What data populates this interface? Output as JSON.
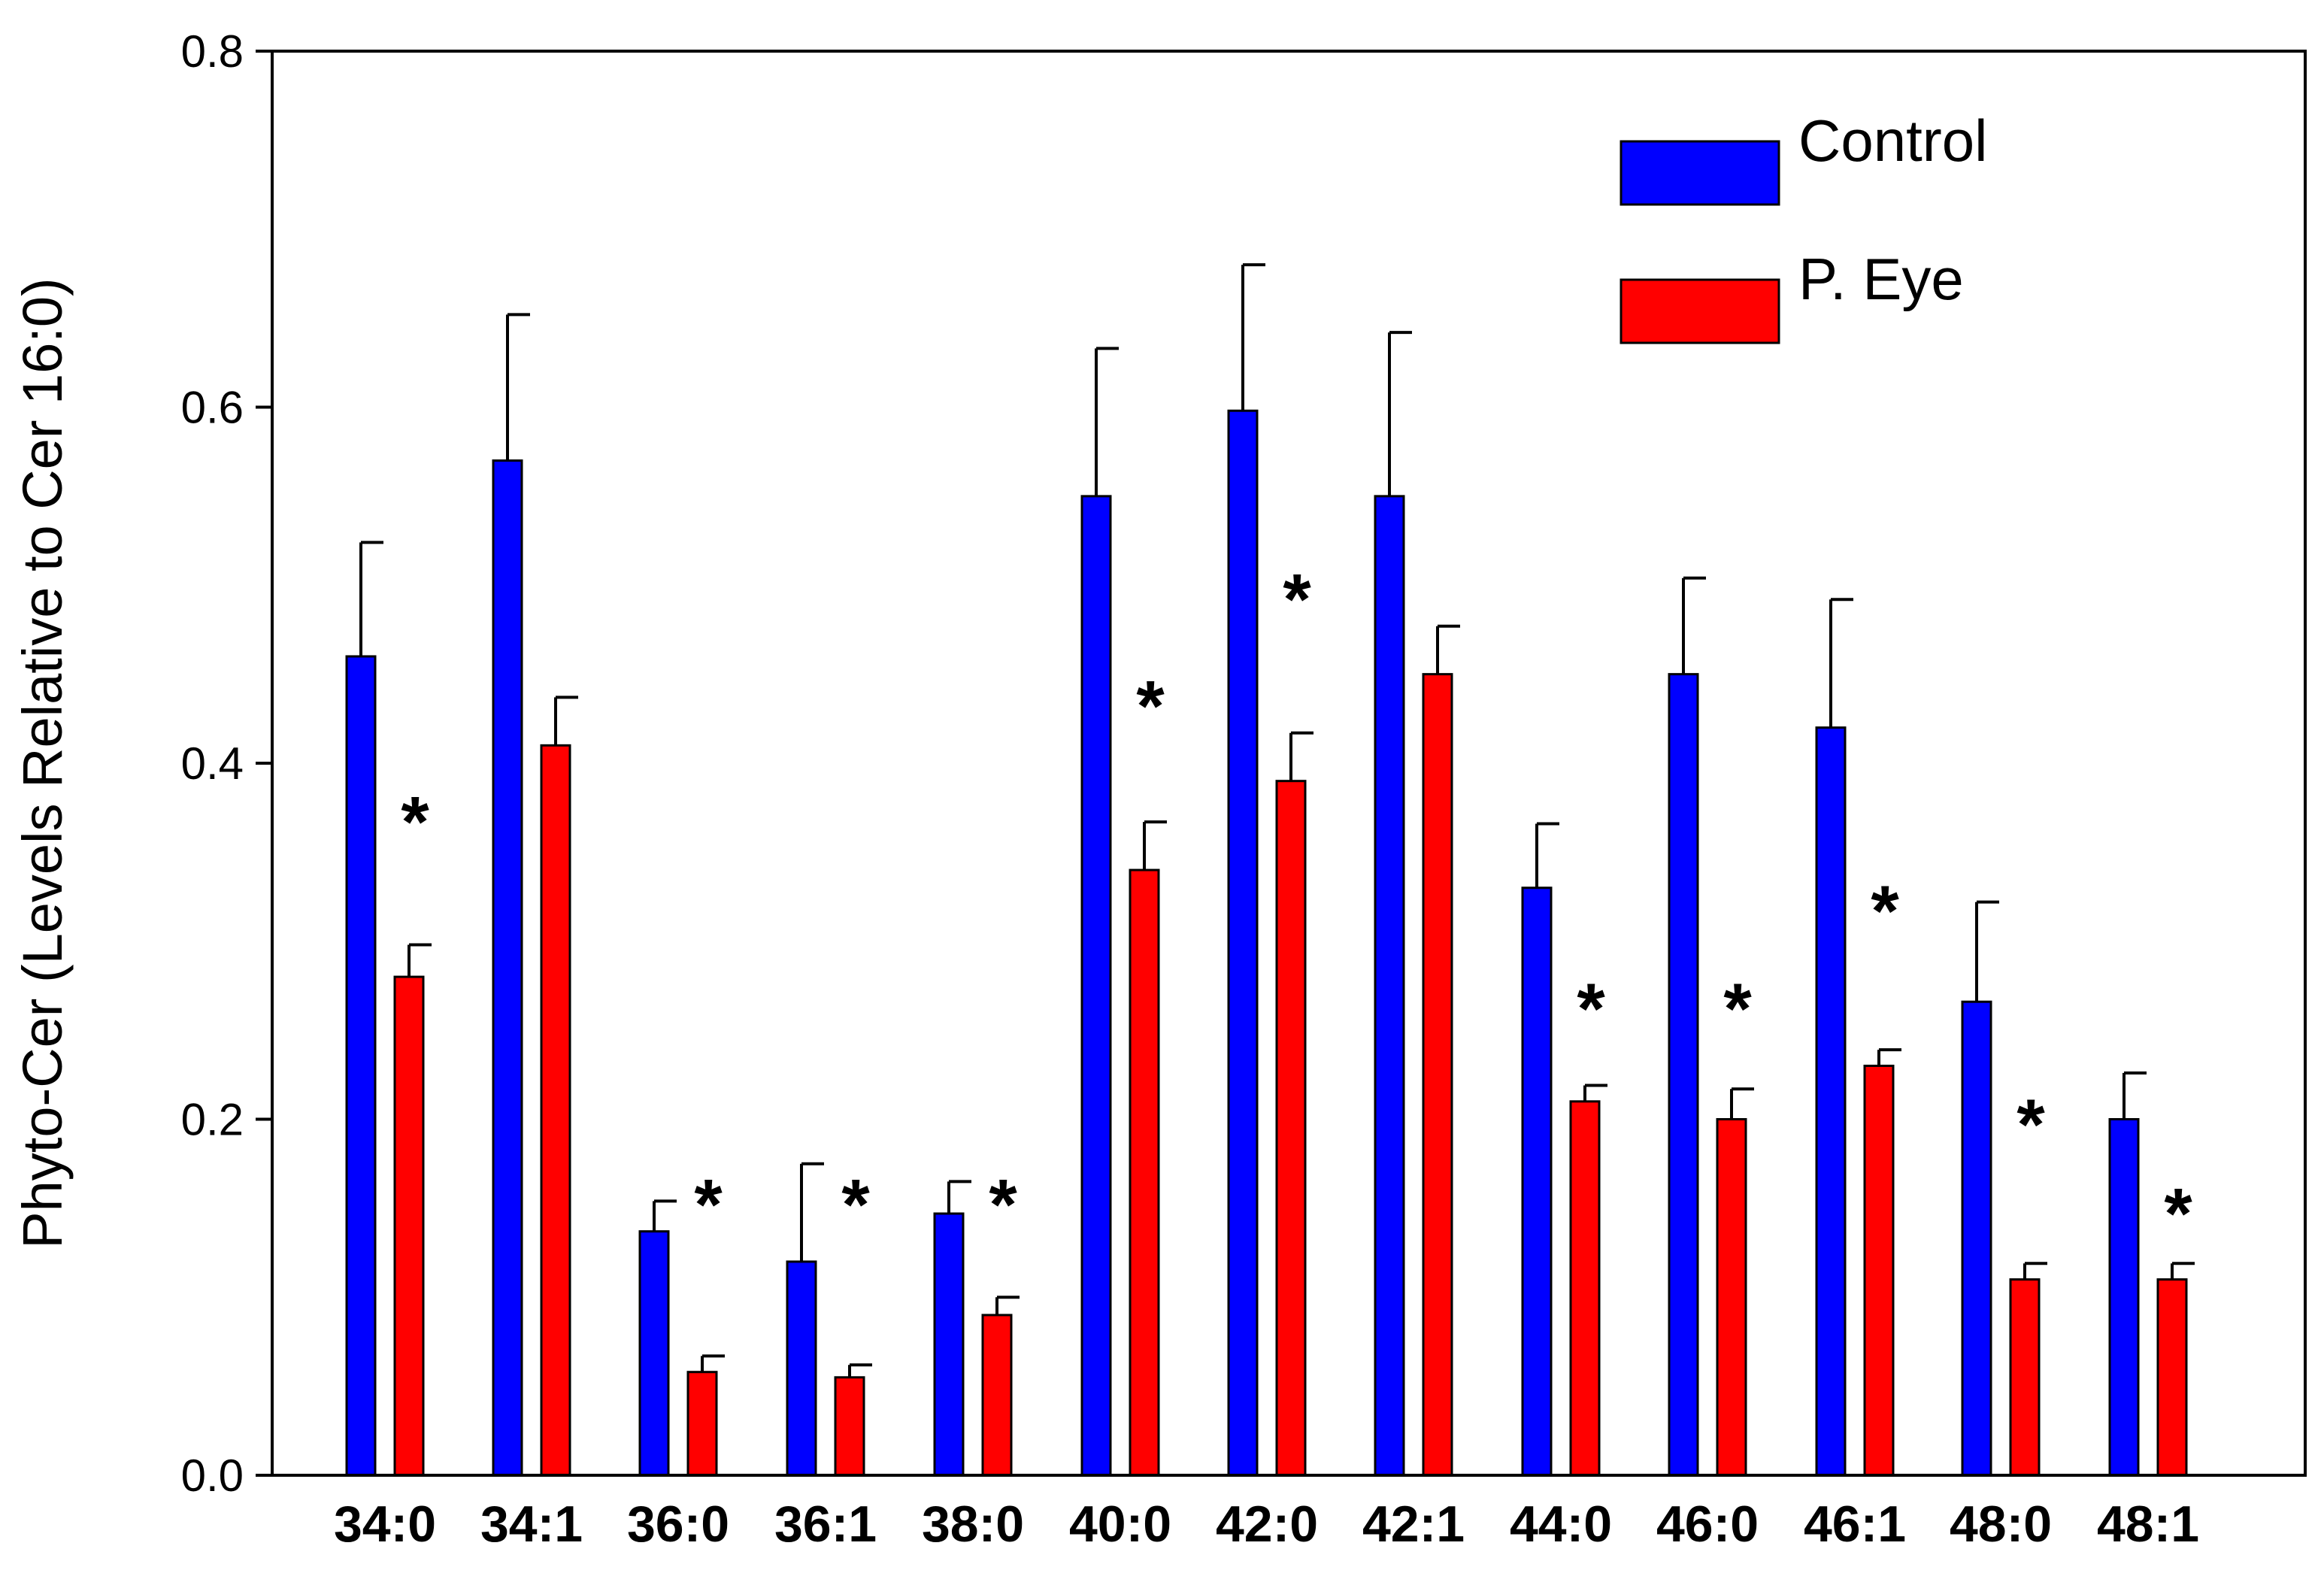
{
  "chart_data": {
    "type": "bar",
    "title": "",
    "xlabel": "",
    "ylabel": "Phyto-Cer (Levels Relative to Cer 16:0)",
    "ylim": [
      0,
      0.8
    ],
    "yticks": [
      "0.0",
      "0.2",
      "0.4",
      "0.6",
      "0.8"
    ],
    "ytick_values": [
      0,
      0.2,
      0.4,
      0.6,
      0.8
    ],
    "legend_position": "top-right",
    "categories": [
      "34:0",
      "34:1",
      "36:0",
      "36:1",
      "38:0",
      "40:0",
      "42:0",
      "42:1",
      "44:0",
      "46:0",
      "46:1",
      "48:0",
      "48:1"
    ],
    "series": [
      {
        "name": "Control",
        "color": "#0000ff",
        "values": [
          0.46,
          0.57,
          0.137,
          0.12,
          0.147,
          0.55,
          0.598,
          0.55,
          0.33,
          0.45,
          0.42,
          0.266,
          0.2
        ],
        "errors": [
          0.064,
          0.082,
          0.017,
          0.055,
          0.018,
          0.083,
          0.082,
          0.092,
          0.036,
          0.054,
          0.072,
          0.056,
          0.026
        ]
      },
      {
        "name": "P. Eye",
        "color": "#ff0000",
        "values": [
          0.28,
          0.41,
          0.058,
          0.055,
          0.09,
          0.34,
          0.39,
          0.45,
          0.21,
          0.2,
          0.23,
          0.11,
          0.11
        ],
        "errors": [
          0.018,
          0.027,
          0.009,
          0.007,
          0.01,
          0.027,
          0.027,
          0.027,
          0.009,
          0.017,
          0.009,
          0.009,
          0.009
        ]
      }
    ],
    "significance_marker": "*",
    "significant": [
      true,
      false,
      true,
      true,
      true,
      true,
      true,
      false,
      true,
      true,
      true,
      true,
      true
    ],
    "significance_y": [
      0.37,
      null,
      0.155,
      0.155,
      0.155,
      0.435,
      0.495,
      null,
      0.265,
      0.265,
      0.32,
      0.2,
      0.15
    ]
  }
}
